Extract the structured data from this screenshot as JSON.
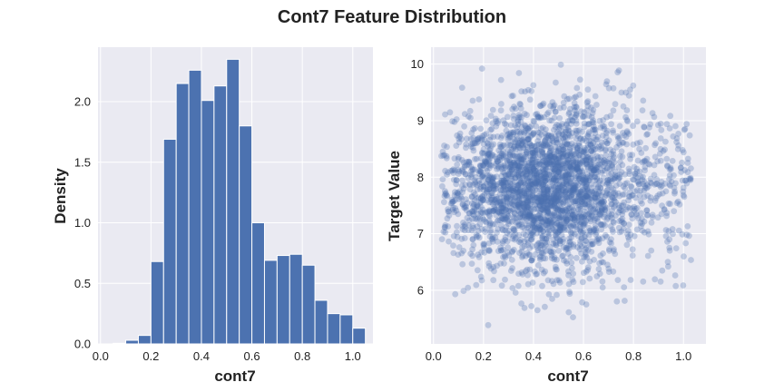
{
  "figure": {
    "title": "Cont7 Feature Distribution"
  },
  "colors": {
    "bar": "#4c72b0",
    "point": "#4c72b0",
    "panel_bg": "#eaeaf2",
    "grid": "#ffffff"
  },
  "chart_data": [
    {
      "type": "bar",
      "kind": "histogram",
      "title": "",
      "xlabel": "cont7",
      "ylabel": "Density",
      "xlim": [
        -0.01,
        1.08
      ],
      "ylim": [
        0,
        2.45
      ],
      "xticks": [
        "0.0",
        "0.2",
        "0.4",
        "0.6",
        "0.8",
        "1.0"
      ],
      "yticks": [
        "0.0",
        "0.5",
        "1.0",
        "1.5",
        "2.0"
      ],
      "bin_edges": [
        0.05,
        0.1,
        0.15,
        0.2,
        0.25,
        0.3,
        0.35,
        0.4,
        0.45,
        0.5,
        0.55,
        0.6,
        0.65,
        0.7,
        0.75,
        0.8,
        0.85,
        0.9,
        0.95,
        1.0,
        1.05
      ],
      "values": [
        0.005,
        0.03,
        0.07,
        0.68,
        1.69,
        2.15,
        2.26,
        2.01,
        2.13,
        2.35,
        1.8,
        1.0,
        0.69,
        0.73,
        0.74,
        0.65,
        0.36,
        0.25,
        0.24,
        0.13
      ],
      "grid": true,
      "color": "#4c72b0"
    },
    {
      "type": "scatter",
      "title": "",
      "xlabel": "cont7",
      "ylabel": "Target Value",
      "xlim": [
        -0.01,
        1.09
      ],
      "ylim": [
        5.05,
        10.3
      ],
      "xticks": [
        "0.0",
        "0.2",
        "0.4",
        "0.6",
        "0.8",
        "1.0"
      ],
      "yticks": [
        "6",
        "7",
        "8",
        "9",
        "10"
      ],
      "grid": true,
      "color": "#4c72b0",
      "alpha": 0.3,
      "distribution": {
        "x_range": [
          0.03,
          1.03
        ],
        "x_peak": 0.45,
        "y_center": 7.85,
        "y_spread": 0.72,
        "y_range": [
          5.3,
          10.05
        ],
        "point_count": 3000
      }
    }
  ]
}
